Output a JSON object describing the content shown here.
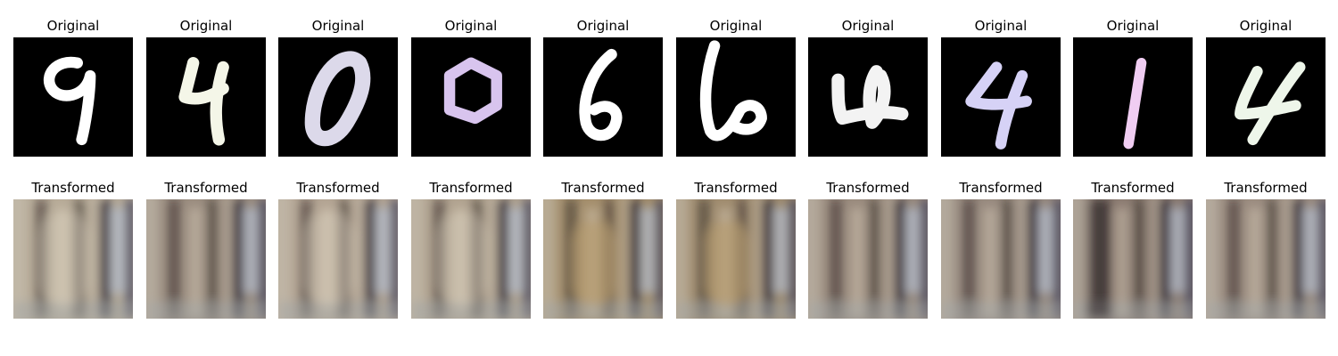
{
  "figure": {
    "rows": [
      {
        "row_label": "Original",
        "panels": [
          {
            "digit": "9",
            "glyph_color": "#ffffff",
            "bg": "#000000"
          },
          {
            "digit": "4",
            "glyph_color": "#f4f6e8",
            "bg": "#000000"
          },
          {
            "digit": "0",
            "glyph_color": "#dcd9ea",
            "bg": "#000000"
          },
          {
            "digit": "0",
            "glyph_color": "#d8c4ee",
            "bg": "#000000"
          },
          {
            "digit": "6",
            "glyph_color": "#ffffff",
            "bg": "#000000"
          },
          {
            "digit": "6",
            "glyph_color": "#ffffff",
            "bg": "#000000"
          },
          {
            "digit": "4",
            "glyph_color": "#f3f3f3",
            "bg": "#000000"
          },
          {
            "digit": "4",
            "glyph_color": "#d6d2f6",
            "bg": "#000000"
          },
          {
            "digit": "1",
            "glyph_color": "#f0cdf2",
            "bg": "#000000"
          },
          {
            "digit": "4",
            "glyph_color": "#eef6ea",
            "bg": "#000000"
          }
        ]
      },
      {
        "row_label": "Transformed",
        "panels": [
          {
            "tone": "light",
            "base": "#b7ab98"
          },
          {
            "tone": "medium",
            "base": "#9b8d80"
          },
          {
            "tone": "light",
            "base": "#b3a493"
          },
          {
            "tone": "light",
            "base": "#b1a390"
          },
          {
            "tone": "warm",
            "base": "#a48e6c"
          },
          {
            "tone": "warm",
            "base": "#a08c6f"
          },
          {
            "tone": "medium",
            "base": "#9a8b7e"
          },
          {
            "tone": "medium",
            "base": "#988a7f"
          },
          {
            "tone": "dark",
            "base": "#8c7c72"
          },
          {
            "tone": "medium",
            "base": "#9b8c80"
          }
        ]
      }
    ]
  }
}
